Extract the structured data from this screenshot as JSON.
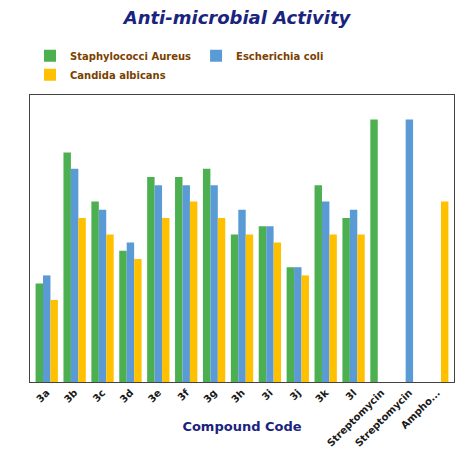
{
  "chart_data": {
    "type": "bar",
    "title": "Anti-microbial Activity",
    "xlabel": "Compound Code",
    "categories": [
      "3a",
      "3b",
      "3c",
      "3d",
      "3e",
      "3f",
      "3g",
      "3h",
      "3i",
      "3j",
      "3k",
      "3l",
      "Streptomycin",
      "Streptomycin",
      "Ampho..."
    ],
    "series": [
      {
        "name": "Staphylococci Aureus",
        "color": "#4caf50",
        "values": [
          12,
          28,
          22,
          16,
          25,
          25,
          26,
          18,
          19,
          14,
          24,
          20,
          32,
          0,
          0
        ]
      },
      {
        "name": "Escherichia coli",
        "color": "#5b9bd5",
        "values": [
          13,
          26,
          21,
          17,
          24,
          24,
          24,
          21,
          19,
          14,
          22,
          21,
          0,
          32,
          0
        ]
      },
      {
        "name": "Candida albicans",
        "color": "#ffc000",
        "values": [
          10,
          20,
          18,
          15,
          20,
          22,
          20,
          18,
          17,
          13,
          18,
          18,
          0,
          0,
          22
        ]
      }
    ],
    "ylim": [
      0,
      35
    ],
    "yticks": [],
    "grid": false,
    "tick_labels": "x",
    "legend": "upper left"
  }
}
